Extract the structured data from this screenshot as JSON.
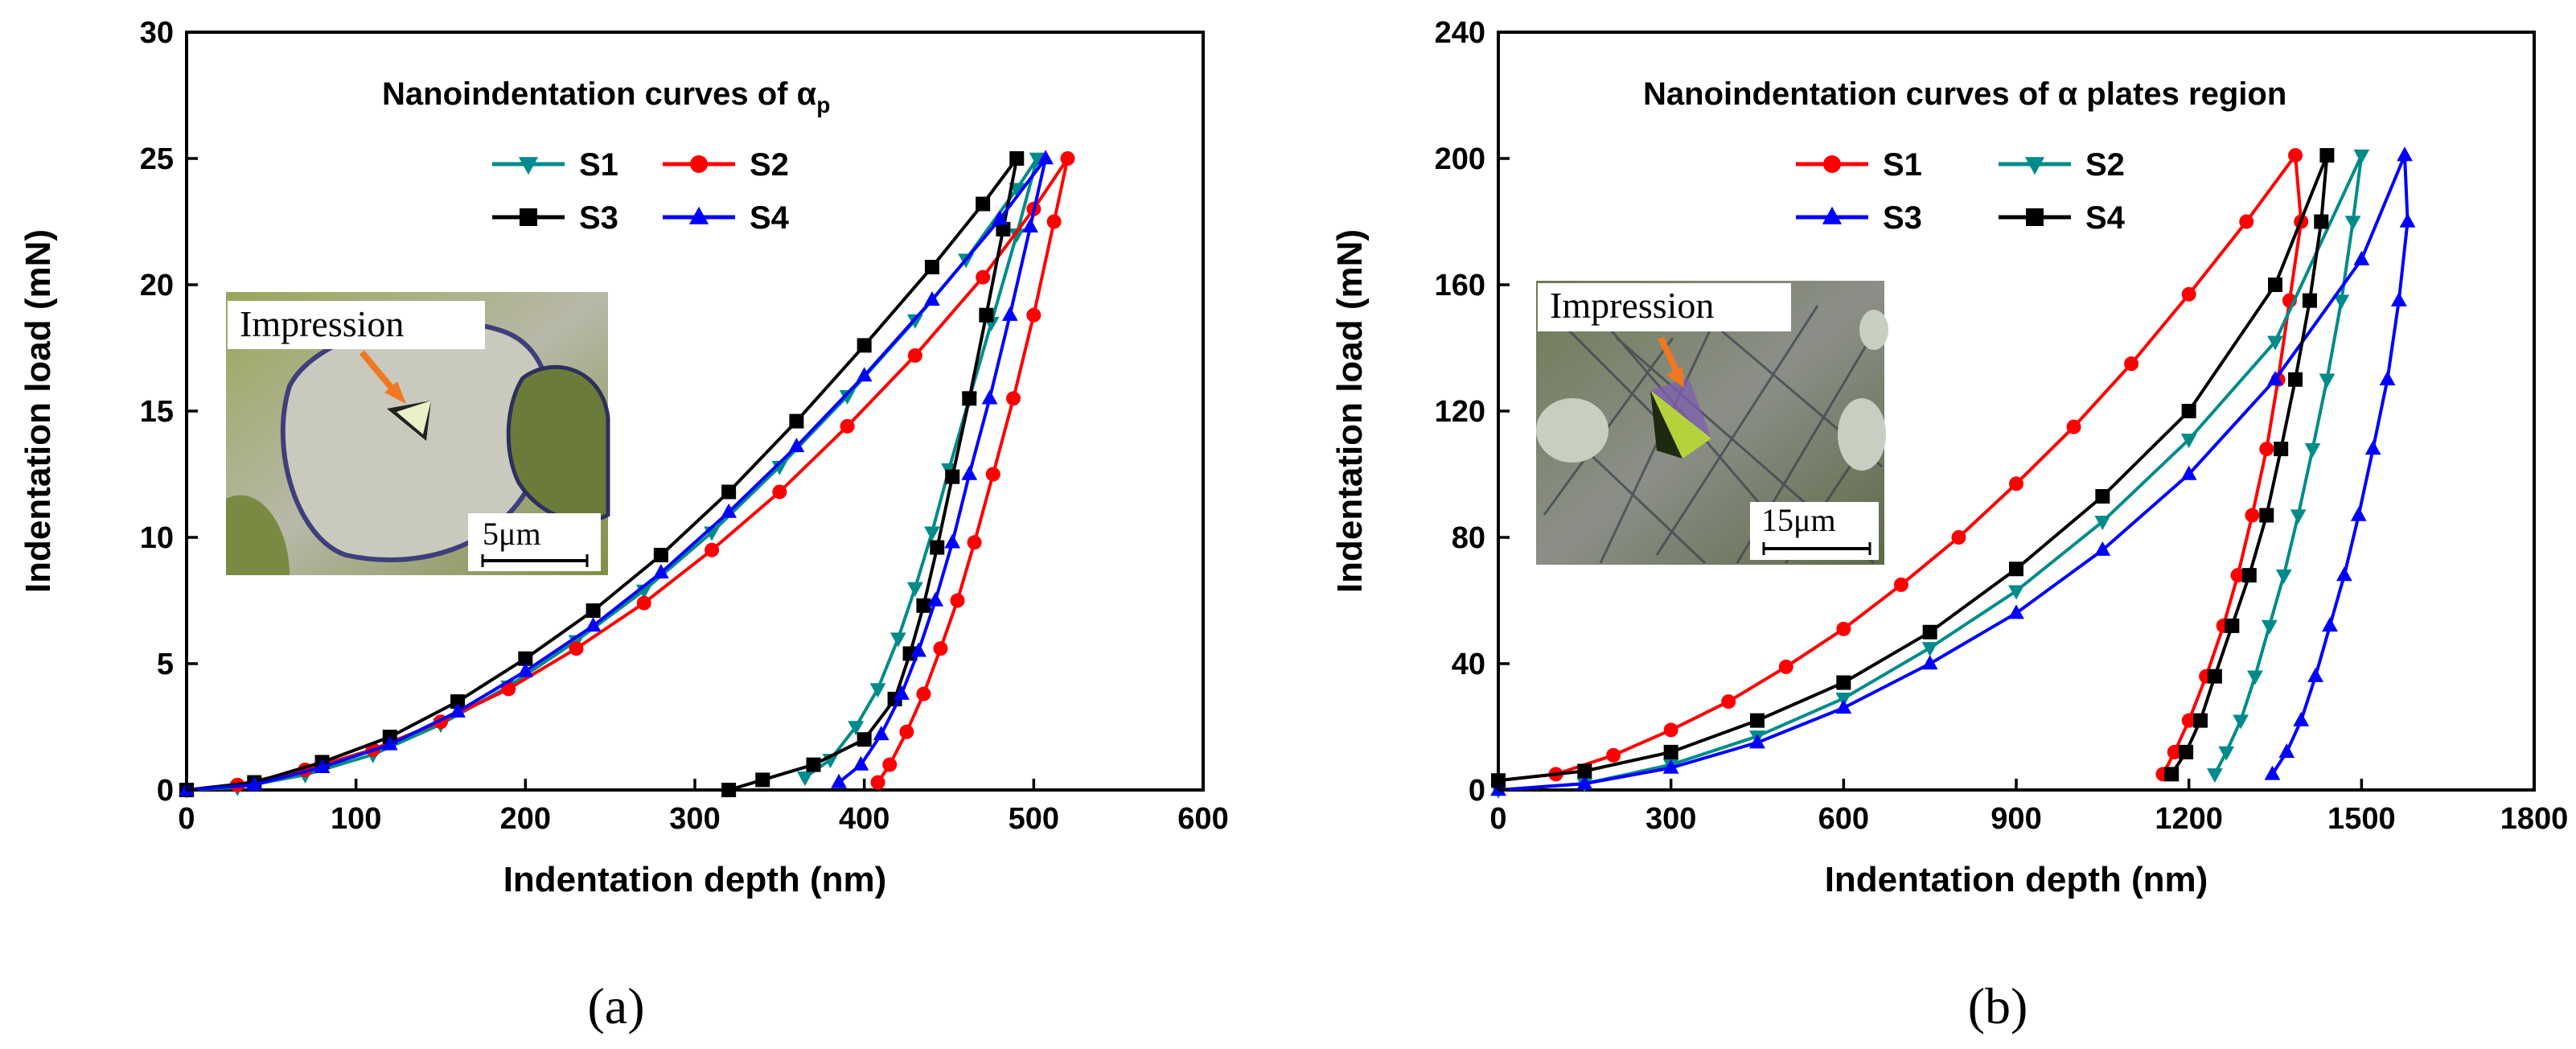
{
  "chart_data": [
    {
      "type": "line",
      "title": "Nanoindentation curves of α",
      "title_subscript": "p",
      "panel_label": "(a)",
      "xlabel": "Indentation depth (nm)",
      "ylabel": "Indentation load (mN)",
      "xlim": [
        0,
        600
      ],
      "ylim": [
        0,
        30
      ],
      "xticks": [
        0,
        100,
        200,
        300,
        400,
        500,
        600
      ],
      "yticks": [
        0,
        5,
        10,
        15,
        20,
        25,
        30
      ],
      "grid": false,
      "legend_position": "top-center",
      "legend_order": [
        "S1",
        "S2",
        "S3",
        "S4"
      ],
      "inset": {
        "label": "Impression",
        "scale": "5μm"
      },
      "series": [
        {
          "name": "S1",
          "color": "#008b8b",
          "marker": "triangle-down",
          "load_x": [
            0,
            30,
            70,
            110,
            150,
            190,
            230,
            270,
            310,
            350,
            390,
            430,
            460,
            490,
            502
          ],
          "load_y": [
            0,
            0.1,
            0.6,
            1.4,
            2.6,
            4.1,
            5.9,
            7.9,
            10.2,
            12.8,
            15.6,
            18.6,
            21.0,
            23.8,
            25
          ],
          "unload_x": [
            502,
            490,
            475,
            462,
            450,
            440,
            430,
            420,
            408,
            395,
            380,
            365
          ],
          "unload_y": [
            25,
            22,
            18.5,
            15.5,
            12.7,
            10.2,
            8.0,
            6.0,
            4.0,
            2.5,
            1.2,
            0.5
          ]
        },
        {
          "name": "S2",
          "color": "#ff0000",
          "marker": "circle",
          "load_x": [
            0,
            30,
            70,
            110,
            150,
            190,
            230,
            270,
            310,
            350,
            390,
            430,
            470,
            500,
            520
          ],
          "load_y": [
            0,
            0.2,
            0.8,
            1.6,
            2.7,
            4.0,
            5.6,
            7.4,
            9.5,
            11.8,
            14.4,
            17.2,
            20.3,
            23.0,
            25
          ],
          "unload_x": [
            520,
            512,
            500,
            488,
            476,
            465,
            455,
            445,
            435,
            425,
            415,
            408
          ],
          "unload_y": [
            25,
            22.5,
            18.8,
            15.5,
            12.5,
            9.8,
            7.5,
            5.6,
            3.8,
            2.3,
            1.0,
            0.3
          ]
        },
        {
          "name": "S3",
          "color": "#000000",
          "marker": "square",
          "load_x": [
            0,
            40,
            80,
            120,
            160,
            200,
            240,
            280,
            320,
            360,
            400,
            440,
            470,
            490
          ],
          "load_y": [
            0,
            0.3,
            1.1,
            2.1,
            3.5,
            5.2,
            7.1,
            9.3,
            11.8,
            14.6,
            17.6,
            20.7,
            23.2,
            25
          ],
          "unload_x": [
            490,
            482,
            472,
            462,
            452,
            443,
            435,
            427,
            418,
            400,
            370,
            340,
            320
          ],
          "unload_y": [
            25,
            22.2,
            18.8,
            15.5,
            12.4,
            9.6,
            7.3,
            5.4,
            3.6,
            2.0,
            1.0,
            0.4,
            0
          ]
        },
        {
          "name": "S4",
          "color": "#0000ff",
          "marker": "triangle-up",
          "load_x": [
            0,
            40,
            80,
            120,
            160,
            200,
            240,
            280,
            320,
            360,
            400,
            440,
            480,
            507
          ],
          "load_y": [
            0,
            0.2,
            0.9,
            1.8,
            3.1,
            4.7,
            6.5,
            8.6,
            11.0,
            13.6,
            16.4,
            19.4,
            22.6,
            25
          ],
          "unload_x": [
            507,
            498,
            486,
            474,
            462,
            452,
            442,
            432,
            422,
            410,
            398,
            385
          ],
          "unload_y": [
            25,
            22.3,
            18.8,
            15.5,
            12.5,
            9.8,
            7.5,
            5.5,
            3.8,
            2.2,
            1.0,
            0.3
          ]
        }
      ]
    },
    {
      "type": "line",
      "title": "Nanoindentation curves of α plates region",
      "panel_label": "(b)",
      "xlabel": "Indentation depth (nm)",
      "ylabel": "Indentation load (mN)",
      "xlim": [
        0,
        1800
      ],
      "ylim": [
        0,
        240
      ],
      "xticks": [
        0,
        300,
        600,
        900,
        1200,
        1500,
        1800
      ],
      "yticks": [
        0,
        40,
        80,
        120,
        160,
        200,
        240
      ],
      "grid": false,
      "legend_position": "top-center",
      "legend_order": [
        "S1",
        "S2",
        "S3",
        "S4"
      ],
      "inset": {
        "label": "Impression",
        "scale": "15μm"
      },
      "series": [
        {
          "name": "S1",
          "color": "#ff0000",
          "marker": "circle",
          "load_x": [
            0,
            100,
            200,
            300,
            400,
            500,
            600,
            700,
            800,
            900,
            1000,
            1100,
            1200,
            1300,
            1385
          ],
          "load_y": [
            3,
            5,
            11,
            19,
            28,
            39,
            51,
            65,
            80,
            97,
            115,
            135,
            157,
            180,
            201
          ],
          "unload_x": [
            1410,
            1395,
            1375,
            1355,
            1335,
            1310,
            1285,
            1260,
            1230,
            1200,
            1175,
            1155
          ],
          "unload_y": [
            201,
            180,
            155,
            130,
            108,
            87,
            68,
            52,
            36,
            22,
            12,
            5
          ]
        },
        {
          "name": "S2",
          "color": "#008b8b",
          "marker": "triangle-down",
          "load_x": [
            0,
            150,
            300,
            450,
            600,
            750,
            900,
            1050,
            1200,
            1350,
            1500
          ],
          "load_y": [
            0,
            2,
            8,
            17,
            29,
            45,
            63,
            85,
            111,
            142,
            201
          ],
          "unload_x": [
            1500,
            1485,
            1465,
            1440,
            1415,
            1390,
            1365,
            1340,
            1315,
            1290,
            1265,
            1245
          ],
          "unload_y": [
            201,
            180,
            155,
            130,
            108,
            87,
            68,
            52,
            36,
            22,
            12,
            5
          ]
        },
        {
          "name": "S3",
          "color": "#0000ff",
          "marker": "triangle-up",
          "load_x": [
            0,
            150,
            300,
            450,
            600,
            750,
            900,
            1050,
            1200,
            1350,
            1500,
            1575
          ],
          "load_y": [
            0,
            2,
            7,
            15,
            26,
            40,
            56,
            76,
            100,
            130,
            168,
            201
          ],
          "unload_x": [
            1590,
            1580,
            1565,
            1545,
            1520,
            1495,
            1470,
            1445,
            1420,
            1395,
            1370,
            1345
          ],
          "unload_y": [
            201,
            180,
            155,
            130,
            108,
            87,
            68,
            52,
            36,
            22,
            12,
            5
          ]
        },
        {
          "name": "S4",
          "color": "#000000",
          "marker": "square",
          "load_x": [
            0,
            150,
            300,
            450,
            600,
            750,
            900,
            1050,
            1200,
            1350,
            1440
          ],
          "load_y": [
            3,
            6,
            12,
            22,
            34,
            50,
            70,
            93,
            120,
            160,
            201
          ],
          "unload_x": [
            1450,
            1430,
            1410,
            1385,
            1360,
            1335,
            1305,
            1275,
            1245,
            1220,
            1195,
            1170
          ],
          "unload_y": [
            201,
            180,
            155,
            130,
            108,
            87,
            68,
            52,
            36,
            22,
            12,
            5
          ]
        }
      ]
    }
  ]
}
